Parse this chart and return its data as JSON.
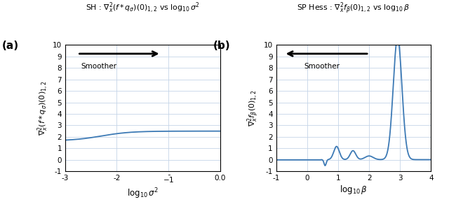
{
  "title_a": "SH : $\\nabla^2_x(f * q_\\sigma)(0)_{1,2}$ vs $\\log_{10} \\sigma^2$",
  "title_b": "SP Hess : $\\nabla^2_x f_\\beta(0)_{1,2}$ vs $\\log_{10} \\beta$",
  "ylabel_a": "$\\nabla^2_x(f * q_\\sigma)(0)_{1,2}$",
  "ylabel_b": "$\\nabla^2_x f_\\beta(0)_{1,2}$",
  "xlabel_a": "$\\log_{10} \\sigma^2$",
  "xlabel_b": "$\\log_{10} \\beta$",
  "xlim_a": [
    -3.0,
    0.0
  ],
  "xlim_b": [
    -1.0,
    4.0
  ],
  "ylim_a": [
    -1,
    10
  ],
  "ylim_b": [
    -1,
    10
  ],
  "yticks": [
    -1,
    0,
    1,
    2,
    3,
    4,
    5,
    6,
    7,
    8,
    9,
    10
  ],
  "xticks_a": [
    -3,
    -2,
    -1,
    0.0
  ],
  "xtick_labels_a": [
    "-3",
    "-2",
    "$\\bar{-1}$",
    "0.0"
  ],
  "xticks_b": [
    -1,
    0,
    1,
    2,
    3,
    4
  ],
  "line_color": "#3d7ab5",
  "panel_label_a": "(a)",
  "panel_label_b": "(b)",
  "background_color": "#ffffff",
  "grid_color": "#c5d5e8"
}
